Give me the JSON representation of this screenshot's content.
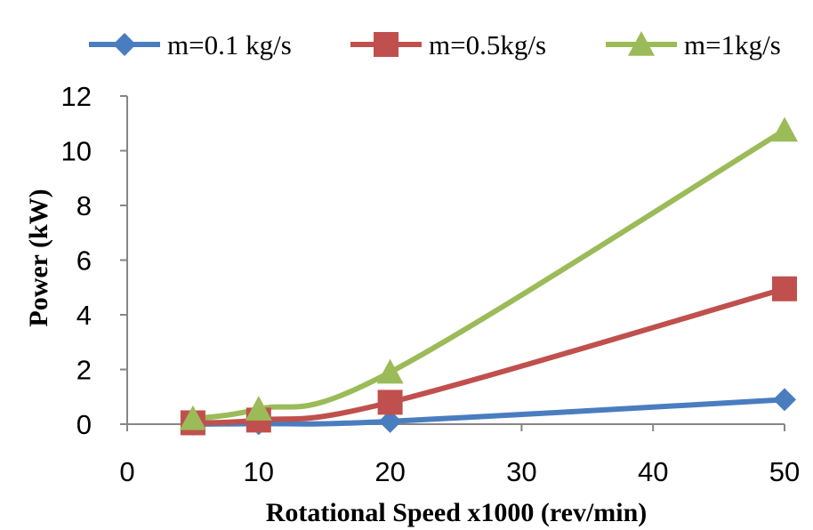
{
  "chart_data": {
    "type": "line",
    "title": "",
    "xlabel": "Rotational Speed x1000 (rev/min)",
    "ylabel": "Power (kW)",
    "xlim": [
      0,
      50
    ],
    "ylim": [
      0,
      12
    ],
    "x_ticks": [
      "0",
      "10",
      "20",
      "30",
      "40",
      "50"
    ],
    "y_ticks": [
      "0",
      "2",
      "4",
      "6",
      "8",
      "10",
      "12"
    ],
    "grid": false,
    "legend_position": "top",
    "x": [
      5,
      10,
      20,
      50
    ],
    "series": [
      {
        "name": "m=0.1 kg/s",
        "values": [
          0.0,
          0.02,
          0.1,
          0.9
        ],
        "color": "#4a7dbf",
        "marker": "diamond"
      },
      {
        "name": "m=0.5kg/s",
        "values": [
          0.05,
          0.15,
          0.8,
          4.95
        ],
        "color": "#c0504d",
        "marker": "square"
      },
      {
        "name": "m=1kg/s",
        "values": [
          0.2,
          0.55,
          1.9,
          10.75
        ],
        "color": "#9bbb59",
        "marker": "triangle"
      }
    ]
  }
}
